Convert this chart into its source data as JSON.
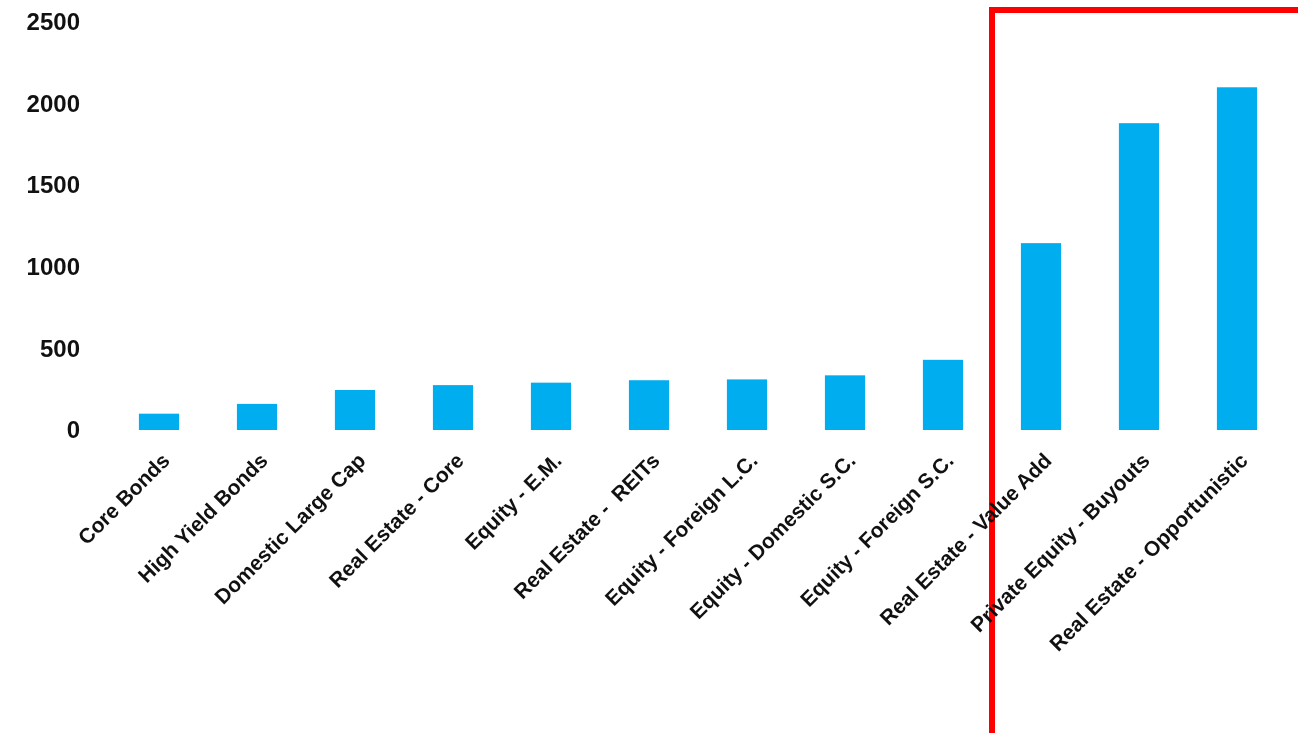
{
  "chart_data": {
    "type": "bar",
    "categories": [
      "Core Bonds",
      "High Yield Bonds",
      "Domestic Large Cap",
      "Real Estate - Core",
      "Equity - E.M.",
      "Real Estate -  REITs",
      "Equity - Foreign L.C.",
      "Equity - Domestic S.C.",
      "Equity - Foreign S.C.",
      "Real Estate - Value Add",
      "Private Equity - Buyouts",
      "Real Estate - Opportunistic"
    ],
    "values": [
      100,
      160,
      245,
      275,
      290,
      305,
      310,
      335,
      430,
      1145,
      1880,
      2100
    ],
    "color": "#00aeef",
    "ylim": [
      0,
      2500
    ],
    "yticks": [
      0,
      500,
      1000,
      1500,
      2000,
      2500
    ],
    "grid": false
  }
}
